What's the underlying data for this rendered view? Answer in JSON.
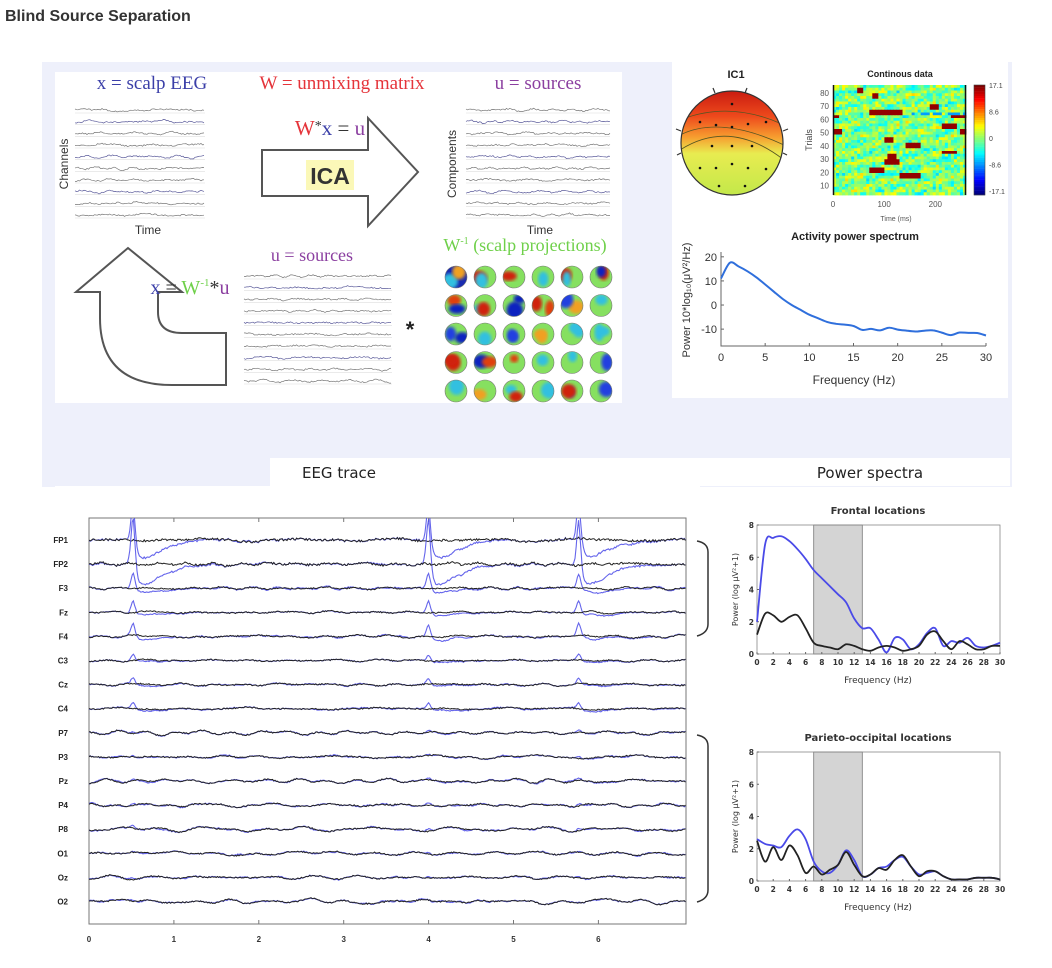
{
  "page_title": "Blind Source Separation",
  "colors": {
    "blue_text": "#3b3fa8",
    "red_text": "#e5343a",
    "purple_text": "#8b3fa0",
    "green_text": "#6fd04a",
    "eeg_blue": "#4a4ae8",
    "eeg_black": "#222222",
    "band_gray": "#d4d4d4",
    "spectrum_blue": "#2f6fdc"
  },
  "ica_diagram": {
    "x_label": "x = scalp EEG",
    "w_label": "W = unmixing matrix",
    "u_label": "u = sources",
    "forward_eq": {
      "w": "W",
      "star": "*",
      "x": "x",
      "eq": " = ",
      "u": "u"
    },
    "ica": "ICA",
    "channels_axis": "Channels",
    "components_axis": "Components",
    "time_axis": "Time",
    "sources_label": "u = sources",
    "inverse_eq": {
      "x": "x",
      "eq": " = ",
      "w": "W",
      "sup": "-1",
      "star": "*",
      "u": "u"
    },
    "scalp_proj": {
      "w": "W",
      "sup": "-1",
      "rest": " (scalp projections)"
    },
    "multiply": "*"
  },
  "ic1": {
    "title": "IC1",
    "icon": "scalp-topography"
  },
  "continuous_data": {
    "title": "Continous data",
    "ylabel": "Trials",
    "xlabel": "Time (ms)",
    "yticks": [
      "80",
      "70",
      "60",
      "50",
      "40",
      "30",
      "20",
      "10"
    ],
    "xticks": [
      "0",
      "100",
      "200"
    ],
    "colorbar_ticks": [
      "17.1",
      "8.6",
      "0",
      "-8.6",
      "-17.1"
    ],
    "colormap": "jet"
  },
  "activity_spectrum": {
    "type": "line",
    "title": "Activity power spectrum",
    "xlabel": "Frequency (Hz)",
    "ylabel": "Power 10*log₁₀(μV²/Hz)",
    "xticks": [
      "0",
      "5",
      "10",
      "15",
      "20",
      "25",
      "30"
    ],
    "yticks": [
      "20",
      "10",
      "0",
      "-10"
    ],
    "xlim": [
      0,
      30
    ],
    "ylim": [
      -17,
      22
    ],
    "x": [
      0,
      1,
      2,
      3,
      4,
      5,
      6,
      7,
      8,
      9,
      10,
      11,
      12,
      13,
      14,
      15,
      16,
      17,
      18,
      19,
      20,
      21,
      22,
      23,
      24,
      25,
      26,
      27,
      28,
      29,
      30
    ],
    "values": [
      11,
      17.5,
      16,
      14,
      11.5,
      8.5,
      5.5,
      2.5,
      0,
      -2,
      -4,
      -5.5,
      -7,
      -7.5,
      -8.5,
      -9,
      -10.5,
      -10,
      -10,
      -9.5,
      -10,
      -10.5,
      -10.5,
      -11,
      -11,
      -11,
      -12.5,
      -11.5,
      -11.5,
      -11.5,
      -13
    ]
  },
  "eeg_trace": {
    "title": "EEG trace",
    "channels": [
      "FP1",
      "FP2",
      "F3",
      "Fz",
      "F4",
      "C3",
      "Cz",
      "C4",
      "P7",
      "P3",
      "Pz",
      "P4",
      "P8",
      "O1",
      "Oz",
      "O2"
    ],
    "xticks": [
      "0",
      "1",
      "2",
      "3",
      "4",
      "5",
      "6"
    ]
  },
  "power_spectra": {
    "title": "Power spectra",
    "charts": [
      {
        "type": "line",
        "title": "Frontal locations",
        "xlabel": "Frequency (Hz)",
        "ylabel": "Power (log μV²+1)",
        "xlim": [
          0,
          30
        ],
        "ylim": [
          0,
          8
        ],
        "shaded_band": [
          7,
          13
        ],
        "xticks": [
          "0",
          "2",
          "4",
          "6",
          "8",
          "10",
          "12",
          "14",
          "16",
          "18",
          "20",
          "22",
          "24",
          "26",
          "28",
          "30"
        ],
        "yticks": [
          "0",
          "2",
          "4",
          "6",
          "8"
        ],
        "x": [
          0,
          1,
          2,
          3,
          4,
          5,
          6,
          7,
          8,
          9,
          10,
          11,
          12,
          13,
          14,
          15,
          16,
          17,
          18,
          19,
          20,
          21,
          22,
          23,
          24,
          25,
          26,
          27,
          28,
          29,
          30
        ],
        "series": [
          {
            "color": "#4a4ae8",
            "values": [
              2,
              6.8,
              7.2,
              7.3,
              7.0,
              6.5,
              5.9,
              5.2,
              4.7,
              4.2,
              3.7,
              3.2,
              2.2,
              1.6,
              1.6,
              0.9,
              0.1,
              1.0,
              0.9,
              0.3,
              0.6,
              1.3,
              1.6,
              0.5,
              0.8,
              0.7,
              1.0,
              0.5,
              0.4,
              0.5,
              0.7
            ]
          },
          {
            "color": "#222222",
            "values": [
              1.2,
              2.5,
              2.4,
              2.0,
              2.3,
              2.4,
              1.6,
              0.7,
              0.5,
              0.4,
              0.3,
              0.6,
              0.5,
              0.3,
              0.2,
              0.4,
              0.5,
              0.4,
              0.2,
              0.3,
              0.5,
              1.2,
              1.4,
              0.8,
              0.3,
              0.8,
              0.6,
              0.3,
              0.3,
              0.5,
              0.5
            ]
          }
        ]
      },
      {
        "type": "line",
        "title": "Parieto-occipital locations",
        "xlabel": "Frequency (Hz)",
        "ylabel": "Power (log μV²+1)",
        "xlim": [
          0,
          30
        ],
        "ylim": [
          0,
          8
        ],
        "shaded_band": [
          7,
          13
        ],
        "xticks": [
          "0",
          "2",
          "4",
          "6",
          "8",
          "10",
          "12",
          "14",
          "16",
          "18",
          "20",
          "22",
          "24",
          "26",
          "28",
          "30"
        ],
        "yticks": [
          "0",
          "2",
          "4",
          "6",
          "8"
        ],
        "x": [
          0,
          1,
          2,
          3,
          4,
          5,
          6,
          7,
          8,
          9,
          10,
          11,
          12,
          13,
          14,
          15,
          16,
          17,
          18,
          19,
          20,
          21,
          22,
          23,
          24,
          25,
          26,
          27,
          28,
          29,
          30
        ],
        "series": [
          {
            "color": "#4a4ae8",
            "values": [
              2.6,
              2.3,
              2.2,
              2.1,
              2.8,
              3.2,
              2.6,
              1.2,
              0.6,
              0.5,
              1.0,
              1.9,
              1.3,
              0.3,
              0.4,
              0.8,
              0.9,
              1.3,
              1.5,
              0.9,
              0.4,
              0.5,
              0.6,
              0.3,
              0.1,
              0.1,
              0.1,
              0.2,
              0.2,
              0.2,
              0.1
            ]
          },
          {
            "color": "#222222",
            "values": [
              2.5,
              1.2,
              2.1,
              1.3,
              2.2,
              1.6,
              0.5,
              0.9,
              0.4,
              0.7,
              1.0,
              1.8,
              1.0,
              0.3,
              0.4,
              0.8,
              0.7,
              1.3,
              1.6,
              0.9,
              0.3,
              0.6,
              0.6,
              0.3,
              0.1,
              0.1,
              0.1,
              0.2,
              0.2,
              0.2,
              0.1
            ]
          }
        ]
      }
    ]
  }
}
